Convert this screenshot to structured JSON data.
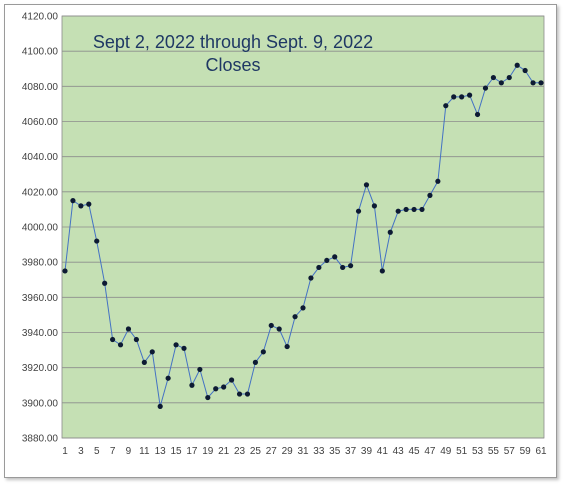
{
  "chart_data": {
    "type": "line",
    "title": "Sept 2, 2022 through Sept. 9, 2022",
    "subtitle": "Closes",
    "xlabel": "",
    "ylabel": "",
    "ylim": [
      3880,
      4120
    ],
    "y_ticks": [
      "3880.00",
      "3900.00",
      "3920.00",
      "3940.00",
      "3960.00",
      "3980.00",
      "4000.00",
      "4020.00",
      "4040.00",
      "4060.00",
      "4080.00",
      "4100.00",
      "4120.00"
    ],
    "x_tick_labels": [
      "1",
      "3",
      "5",
      "7",
      "9",
      "11",
      "13",
      "15",
      "17",
      "19",
      "21",
      "23",
      "25",
      "27",
      "29",
      "31",
      "33",
      "35",
      "37",
      "39",
      "41",
      "43",
      "45",
      "47",
      "49",
      "51",
      "53",
      "55",
      "57",
      "59",
      "61"
    ],
    "grid": true,
    "legend": "none",
    "colors": {
      "plot_bg": "#c5e0b4",
      "line": "#4472c4",
      "marker": "#0d1a33",
      "gridline": "#8c8c8c"
    },
    "series": [
      {
        "values": [
          3975,
          4015,
          4012,
          4013,
          3992,
          3968,
          3936,
          3933,
          3942,
          3936,
          3923,
          3929,
          3898,
          3914,
          3933,
          3931,
          3910,
          3919,
          3903,
          3908,
          3909,
          3913,
          3905,
          3905,
          3923,
          3929,
          3944,
          3942,
          3932,
          3949,
          3954,
          3971,
          3977,
          3981,
          3983,
          3977,
          3978,
          4009,
          4024,
          4012,
          3975,
          3997,
          4009,
          4010,
          4010,
          4010,
          4018,
          4026,
          4069,
          4074,
          4074,
          4075,
          4064,
          4079,
          4085,
          4082,
          4085,
          4092,
          4089,
          4082,
          4082
        ]
      }
    ]
  }
}
